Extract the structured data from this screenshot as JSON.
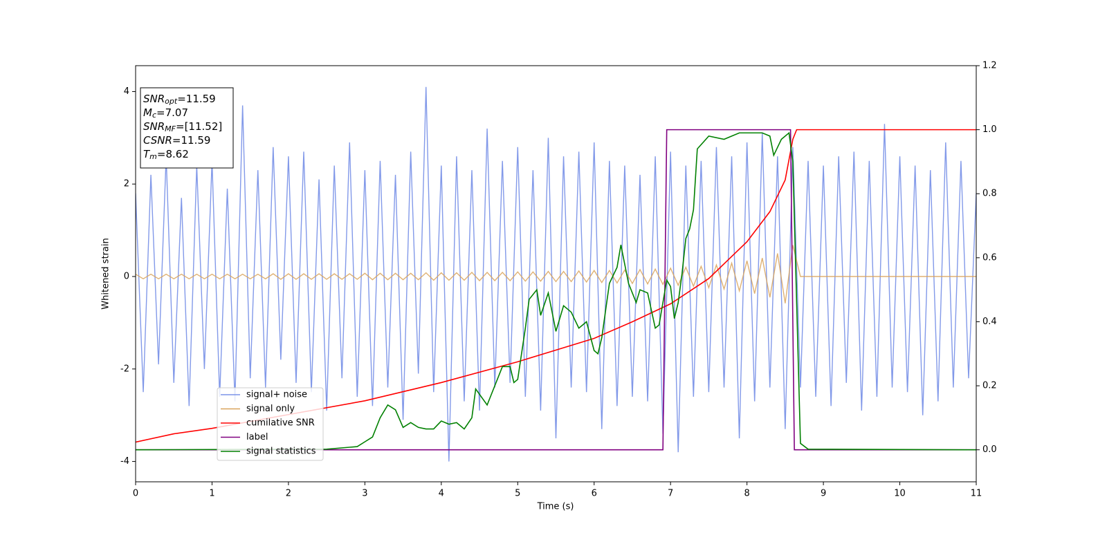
{
  "chart_data": {
    "type": "line",
    "xlabel": "Time (s)",
    "ylabel": "Whitened strain",
    "xlim": [
      0,
      11
    ],
    "xticks": [
      0,
      1,
      2,
      3,
      4,
      5,
      6,
      7,
      8,
      9,
      10,
      11
    ],
    "ylim": [
      -4.44,
      4.56
    ],
    "yticks": [
      -4,
      -2,
      0,
      2,
      4
    ],
    "y2lim": [
      -0.1,
      1.2
    ],
    "y2ticks": [
      {
        "value": 0,
        "label": "0.0"
      },
      0.2,
      0.4,
      0.6,
      0.8,
      {
        "value": 1,
        "label": "1.0"
      },
      1.2
    ],
    "legend": "lower left",
    "annotations": [
      {
        "name": "SNR",
        "sub": "opt",
        "text": "=11.59"
      },
      {
        "name": "M",
        "sub": "c",
        "text": "=7.07"
      },
      {
        "name": "SNR",
        "sub": "MF",
        "text": "=[11.52]"
      },
      {
        "name": "CSNR",
        "text": "=11.59"
      },
      {
        "name": "T",
        "sub": "m",
        "text": "=8.62"
      }
    ],
    "x": [
      0,
      0.1,
      0.2,
      0.3,
      0.4,
      0.5,
      0.6,
      0.7,
      0.8,
      0.9,
      1,
      1.1,
      1.2,
      1.3,
      1.4,
      1.5,
      1.6,
      1.7,
      1.8,
      1.9,
      2,
      2.1,
      2.2,
      2.3,
      2.4,
      2.5,
      2.6,
      2.7,
      2.8,
      2.9,
      3,
      3.1,
      3.2,
      3.3,
      3.4,
      3.5,
      3.6,
      3.7,
      3.8,
      3.9,
      4,
      4.1,
      4.2,
      4.3,
      4.4,
      4.5,
      4.6,
      4.7,
      4.8,
      4.9,
      5,
      5.1,
      5.2,
      5.3,
      5.4,
      5.5,
      5.6,
      5.7,
      5.8,
      5.9,
      6,
      6.1,
      6.2,
      6.3,
      6.4,
      6.5,
      6.6,
      6.7,
      6.8,
      6.9,
      7,
      7.1,
      7.2,
      7.3,
      7.4,
      7.5,
      7.6,
      7.7,
      7.8,
      7.9,
      8,
      8.1,
      8.2,
      8.3,
      8.4,
      8.5,
      8.6,
      8.7,
      8.8,
      8.9,
      9,
      9.1,
      9.2,
      9.3,
      9.4,
      9.5,
      9.6,
      9.7,
      9.8,
      9.9,
      10,
      10.1,
      10.2,
      10.3,
      10.4,
      10.5,
      10.6,
      10.7,
      10.8,
      10.9,
      11
    ],
    "series": [
      {
        "name": "signal+ noise",
        "color": "#7b93e8",
        "values": [
          1.8,
          -2.5,
          2.2,
          -1.9,
          2.6,
          -2.3,
          1.7,
          -2.8,
          2.4,
          -2.0,
          2.5,
          -2.6,
          1.9,
          -2.7,
          3.7,
          -2.2,
          2.3,
          -2.4,
          2.8,
          -1.8,
          2.6,
          -2.3,
          2.7,
          -2.5,
          2.1,
          -2.9,
          2.4,
          -2.2,
          2.9,
          -2.6,
          2.3,
          -2.8,
          2.5,
          -2.4,
          2.2,
          -3.1,
          2.7,
          -2.1,
          4.1,
          -2.5,
          2.4,
          -4.0,
          2.6,
          -2.7,
          2.3,
          -2.9,
          3.2,
          -2.4,
          2.5,
          -2.3,
          2.8,
          -2.6,
          2.3,
          -2.9,
          3.0,
          -3.5,
          2.6,
          -2.4,
          2.7,
          -2.5,
          2.9,
          -3.3,
          2.5,
          -2.8,
          2.4,
          -2.6,
          2.2,
          -2.7,
          2.6,
          -3.4,
          2.7,
          -3.8,
          2.4,
          -2.6,
          2.5,
          -2.5,
          2.8,
          -2.4,
          2.6,
          -3.5,
          2.9,
          -2.7,
          3.1,
          -2.4,
          2.6,
          -3.3,
          2.8,
          -2.4,
          2.5,
          -2.6,
          2.4,
          -2.8,
          2.6,
          -2.3,
          2.7,
          -2.9,
          2.5,
          -2.6,
          3.3,
          -2.4,
          2.6,
          -2.5,
          2.4,
          -3.0,
          2.3,
          -2.7,
          2.9,
          -2.4,
          2.5,
          -2.2,
          1.8
        ]
      },
      {
        "name": "signal only",
        "color": "#d9a35a",
        "values": [
          0.05,
          -0.05,
          0.05,
          -0.05,
          0.05,
          -0.05,
          0.05,
          -0.05,
          0.05,
          -0.05,
          0.05,
          -0.05,
          0.05,
          -0.05,
          0.05,
          -0.05,
          0.05,
          -0.05,
          0.06,
          -0.06,
          0.06,
          -0.06,
          0.06,
          -0.06,
          0.06,
          -0.06,
          0.06,
          -0.06,
          0.06,
          -0.06,
          0.07,
          -0.07,
          0.07,
          -0.07,
          0.07,
          -0.07,
          0.07,
          -0.07,
          0.08,
          -0.08,
          0.08,
          -0.08,
          0.08,
          -0.08,
          0.09,
          -0.09,
          0.09,
          -0.09,
          0.09,
          -0.09,
          0.1,
          -0.1,
          0.1,
          -0.1,
          0.11,
          -0.11,
          0.11,
          -0.11,
          0.12,
          -0.12,
          0.13,
          -0.13,
          0.13,
          -0.14,
          0.14,
          -0.15,
          0.15,
          -0.16,
          0.16,
          -0.17,
          0.18,
          -0.19,
          0.2,
          -0.21,
          0.22,
          -0.24,
          0.25,
          -0.27,
          0.29,
          -0.31,
          0.34,
          -0.37,
          0.4,
          -0.45,
          0.5,
          -0.58,
          0.68,
          0,
          0,
          0,
          0,
          0,
          0,
          0,
          0,
          0,
          0,
          0,
          0,
          0,
          0,
          0,
          0,
          0,
          0,
          0,
          0,
          0,
          0,
          0,
          0
        ]
      },
      {
        "name": "cumilative SNR",
        "color": "#ff0000",
        "axis": "y2",
        "x": [
          0,
          0.5,
          1,
          2,
          3,
          4,
          5,
          6,
          6.5,
          7,
          7.5,
          8,
          8.3,
          8.5,
          8.6,
          8.65,
          11
        ],
        "values": [
          0.024,
          0.05,
          0.067,
          0.11,
          0.153,
          0.21,
          0.275,
          0.348,
          0.4,
          0.456,
          0.535,
          0.65,
          0.744,
          0.843,
          0.97,
          1,
          1
        ]
      },
      {
        "name": "label",
        "color": "#800080",
        "axis": "y2",
        "x": [
          0,
          6.9,
          6.95,
          8.57,
          8.62,
          11
        ],
        "values": [
          0,
          0,
          1,
          1,
          0,
          0
        ]
      },
      {
        "name": "signal statistics",
        "color": "#008000",
        "axis": "y2",
        "x": [
          0,
          2.5,
          2.8,
          2.9,
          3.0,
          3.1,
          3.2,
          3.3,
          3.4,
          3.5,
          3.6,
          3.7,
          3.8,
          3.9,
          4.0,
          4.1,
          4.2,
          4.3,
          4.4,
          4.45,
          4.6,
          4.8,
          4.9,
          4.95,
          5.0,
          5.1,
          5.15,
          5.25,
          5.3,
          5.4,
          5.5,
          5.6,
          5.7,
          5.8,
          5.9,
          6.0,
          6.05,
          6.1,
          6.2,
          6.3,
          6.35,
          6.45,
          6.55,
          6.6,
          6.7,
          6.8,
          6.85,
          6.95,
          7.0,
          7.05,
          7.1,
          7.15,
          7.2,
          7.25,
          7.3,
          7.35,
          7.5,
          7.7,
          7.8,
          7.9,
          8.0,
          8.2,
          8.3,
          8.35,
          8.45,
          8.55,
          8.6,
          8.7,
          8.8,
          11
        ],
        "values": [
          0,
          0.002,
          0.008,
          0.01,
          0.025,
          0.04,
          0.1,
          0.14,
          0.125,
          0.07,
          0.085,
          0.07,
          0.065,
          0.065,
          0.09,
          0.08,
          0.085,
          0.065,
          0.1,
          0.19,
          0.14,
          0.26,
          0.26,
          0.21,
          0.22,
          0.38,
          0.47,
          0.5,
          0.42,
          0.49,
          0.37,
          0.45,
          0.43,
          0.38,
          0.4,
          0.31,
          0.3,
          0.35,
          0.52,
          0.57,
          0.64,
          0.52,
          0.46,
          0.5,
          0.49,
          0.38,
          0.39,
          0.53,
          0.51,
          0.41,
          0.46,
          0.55,
          0.66,
          0.69,
          0.75,
          0.94,
          0.98,
          0.97,
          0.98,
          0.99,
          0.99,
          0.99,
          0.98,
          0.92,
          0.97,
          0.99,
          0.9,
          0.02,
          0.002,
          0
        ]
      }
    ]
  }
}
